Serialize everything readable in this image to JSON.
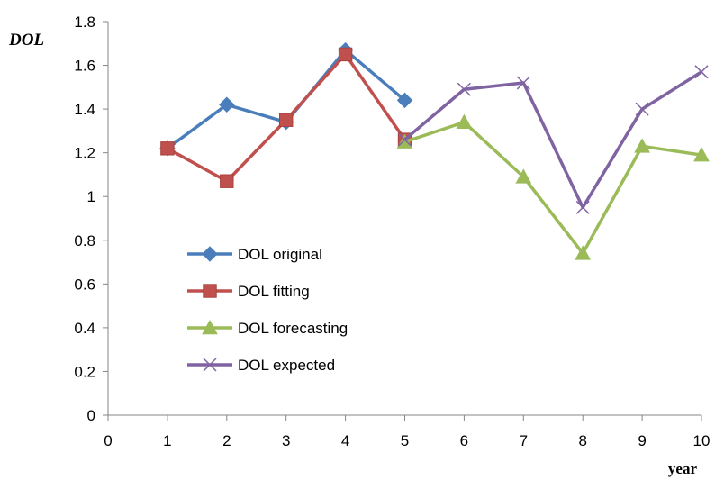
{
  "chart_data": {
    "type": "line",
    "xlabel": "year",
    "ylabel": "DOL",
    "xlim": [
      0,
      10
    ],
    "ylim": [
      0,
      1.8
    ],
    "x_ticks": [
      "0",
      "1",
      "2",
      "3",
      "4",
      "5",
      "6",
      "7",
      "8",
      "9",
      "10"
    ],
    "y_ticks": [
      "0",
      "0.2",
      "0.4",
      "0.6",
      "0.8",
      "1",
      "1.2",
      "1.4",
      "1.6",
      "1.8"
    ],
    "grid": false,
    "legend_position": "bottom-left inside",
    "series": [
      {
        "name": "DOL original",
        "color": "#4a7ebb",
        "marker": "diamond",
        "x": [
          1,
          2,
          3,
          4,
          5
        ],
        "y": [
          1.22,
          1.42,
          1.34,
          1.67,
          1.44
        ]
      },
      {
        "name": "DOL fitting",
        "color": "#c0504d",
        "marker": "square",
        "x": [
          1,
          2,
          3,
          4,
          5
        ],
        "y": [
          1.22,
          1.07,
          1.35,
          1.65,
          1.26
        ]
      },
      {
        "name": "DOL forecasting",
        "color": "#9bbb59",
        "marker": "triangle",
        "x": [
          5,
          6,
          7,
          8,
          9,
          10
        ],
        "y": [
          1.25,
          1.34,
          1.09,
          0.74,
          1.23,
          1.19
        ]
      },
      {
        "name": "DOL expected",
        "color": "#8064a2",
        "marker": "x",
        "x": [
          5,
          6,
          7,
          8,
          9,
          10
        ],
        "y": [
          1.26,
          1.49,
          1.52,
          0.95,
          1.4,
          1.57
        ]
      }
    ]
  }
}
